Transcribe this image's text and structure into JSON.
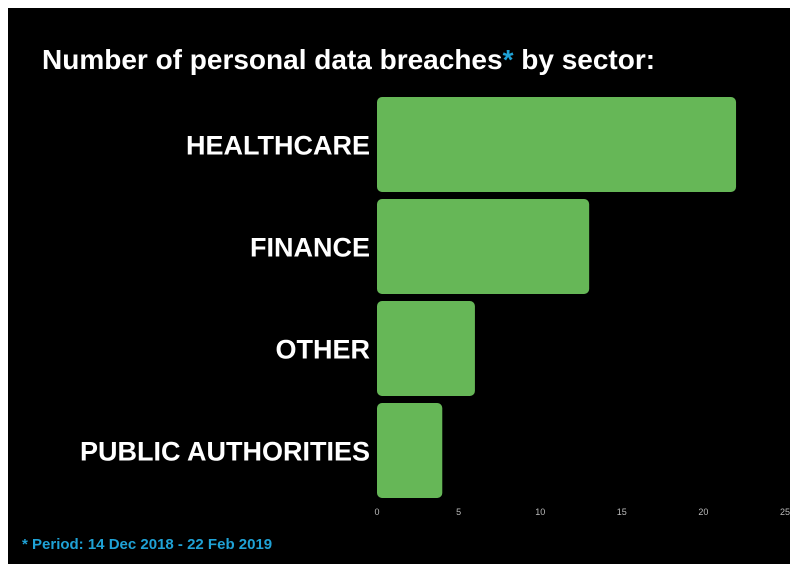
{
  "chart_data": {
    "type": "bar",
    "orientation": "horizontal",
    "title_main": "Number of personal data breaches",
    "title_asterisk": "*",
    "title_suffix": " by sector:",
    "categories": [
      "HEALTHCARE",
      "FINANCE",
      "OTHER",
      "PUBLIC AUTHORITIES"
    ],
    "values": [
      22,
      13,
      6,
      4
    ],
    "xlim": [
      0,
      25
    ],
    "x_ticks": [
      0,
      5,
      10,
      15,
      20,
      25
    ],
    "grid": false,
    "legend": "none",
    "footnote": "* Period: 14 Dec 2018 - 22 Feb 2019"
  },
  "colors": {
    "background": "#000000",
    "bar": "#66b757",
    "text": "#ffffff",
    "accent": "#1fa2d6",
    "tick_text": "#bbbbbb"
  }
}
